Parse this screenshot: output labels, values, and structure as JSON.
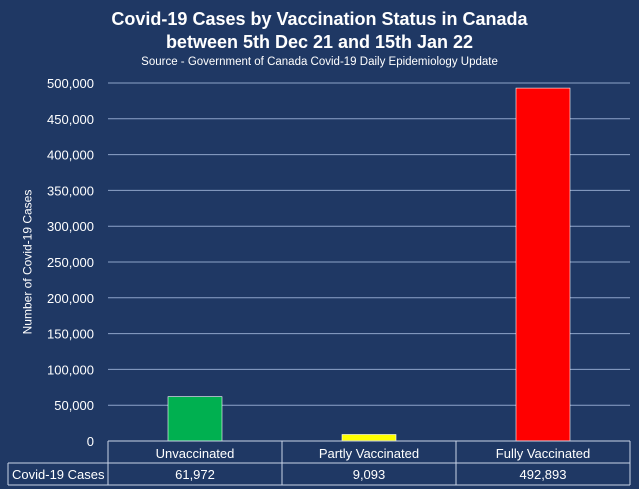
{
  "chart_data": {
    "type": "bar",
    "title": "Covid-19 Cases by Vaccination Status in Canada",
    "title_line2": "between 5th Dec 21 and 15th Jan 22",
    "subtitle": "Source - Government of Canada Covid-19 Daily Epidemiology Update",
    "ylabel": "Number of Covid-19 Cases",
    "xlabel": "",
    "ylim": [
      0,
      500000
    ],
    "yticks": [
      0,
      50000,
      100000,
      150000,
      200000,
      250000,
      300000,
      350000,
      400000,
      450000,
      500000
    ],
    "ytick_labels": [
      "0",
      "50,000",
      "100,000",
      "150,000",
      "200,000",
      "250,000",
      "300,000",
      "350,000",
      "400,000",
      "450,000",
      "500,000"
    ],
    "grid": true,
    "categories": [
      "Unvaccinated",
      "Partly Vaccinated",
      "Fully Vaccinated"
    ],
    "values": [
      61972,
      9093,
      492893
    ],
    "colors": [
      "#00b050",
      "#ffff00",
      "#ff0000"
    ],
    "data_table": {
      "row_label": "Covid-19 Cases",
      "cells": [
        "61,972",
        "9,093",
        "492,893"
      ]
    }
  },
  "style": {
    "background": "#1f3864",
    "text_color": "#ffffff",
    "gridline_color": "#8ea3c9",
    "table_line_color": "#c9d3e6"
  }
}
